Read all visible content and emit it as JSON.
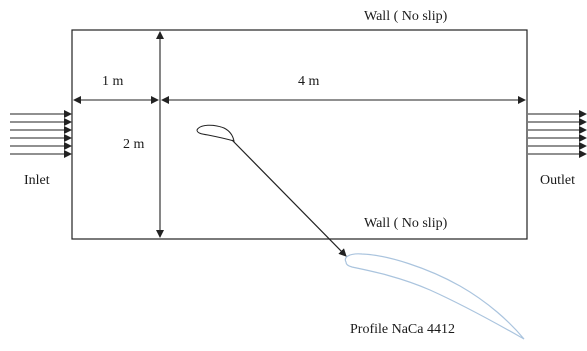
{
  "labels": {
    "wall_top": "Wall ( No slip)",
    "wall_bottom": "Wall ( No slip)",
    "dim_1m": "1 m",
    "dim_4m": "4 m",
    "dim_2m": "2 m",
    "inlet": "Inlet",
    "outlet": "Outlet",
    "profile": "Profile NaCa 4412"
  },
  "colors": {
    "line": "#222222",
    "profile_outline": "#aac4de"
  }
}
